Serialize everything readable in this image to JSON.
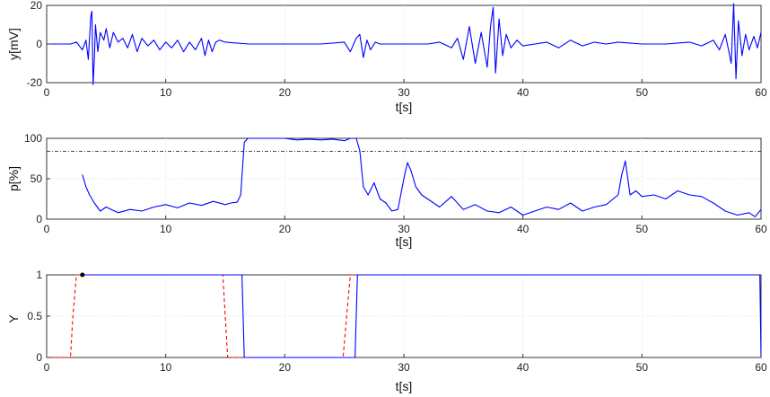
{
  "chart_data": [
    {
      "type": "line",
      "xlabel": "t[s]",
      "ylabel": "y[mV]",
      "xlim": [
        0,
        60
      ],
      "ylim": [
        -20,
        20
      ],
      "xticks": [
        0,
        10,
        20,
        30,
        40,
        50,
        60
      ],
      "yticks": [
        -20,
        0,
        20
      ],
      "grid": true,
      "series": [
        {
          "color": "#0000ff",
          "x": [
            0,
            1,
            2,
            2.5,
            3,
            3.3,
            3.5,
            3.7,
            3.8,
            3.9,
            4.0,
            4.1,
            4.3,
            4.5,
            4.8,
            5.0,
            5.3,
            5.6,
            6.0,
            6.4,
            6.8,
            7.2,
            7.6,
            8.0,
            8.5,
            9.0,
            9.5,
            10.0,
            10.5,
            11.0,
            11.5,
            12.0,
            12.5,
            13.0,
            13.3,
            13.6,
            13.9,
            14.2,
            14.5,
            15,
            17,
            19,
            21,
            23,
            25,
            25.5,
            26.0,
            26.3,
            26.6,
            26.9,
            27.2,
            27.6,
            28,
            30,
            32,
            33,
            34,
            34.5,
            35,
            35.5,
            36,
            36.5,
            37.0,
            37.3,
            37.5,
            37.7,
            38.0,
            38.3,
            38.6,
            39,
            39.5,
            40,
            41,
            42,
            43,
            44,
            45,
            46,
            47,
            48,
            50,
            52,
            54,
            55,
            56,
            56.5,
            57,
            57.3,
            57.5,
            57.7,
            57.9,
            58.1,
            58.4,
            58.7,
            59,
            59.4,
            59.7,
            60
          ],
          "y": [
            0,
            0,
            0,
            1,
            -3,
            2,
            -8,
            14,
            17,
            -21,
            -8,
            10,
            -4,
            6,
            2,
            8,
            -2,
            6,
            1,
            3,
            -2,
            5,
            -4,
            3,
            -1,
            2,
            -3,
            1,
            -2,
            2,
            -4,
            1,
            -3,
            3,
            -6,
            2,
            -4,
            1,
            2,
            1,
            0,
            0,
            0,
            0,
            1,
            -4,
            3,
            5,
            -7,
            2,
            -3,
            1,
            0,
            0,
            0,
            1,
            -2,
            3,
            -8,
            9,
            -10,
            6,
            -12,
            10,
            19,
            -15,
            13,
            -6,
            5,
            -2,
            2,
            -1,
            0,
            1,
            -2,
            2,
            -1,
            1,
            0,
            1,
            0,
            0,
            1,
            -1,
            2,
            -3,
            5,
            -4,
            -10,
            21,
            -18,
            12,
            -6,
            5,
            -3,
            4,
            -2,
            6
          ]
        }
      ]
    },
    {
      "type": "line",
      "xlabel": "t[s]",
      "ylabel": "p[%]",
      "xlim": [
        0,
        60
      ],
      "ylim": [
        0,
        100
      ],
      "xticks": [
        0,
        10,
        20,
        30,
        40,
        50,
        60
      ],
      "yticks": [
        0,
        50,
        100
      ],
      "grid": true,
      "threshold": 84,
      "series": [
        {
          "color": "#0000ff",
          "x": [
            3,
            3.3,
            3.6,
            4,
            4.5,
            5,
            6,
            7,
            8,
            9,
            10,
            11,
            12,
            13,
            14,
            15,
            15.5,
            16,
            16.3,
            16.6,
            16.9,
            17.5,
            18,
            19,
            20,
            21,
            22,
            23,
            24,
            25,
            25.5,
            26,
            26.3,
            26.6,
            27,
            27.5,
            28,
            28.5,
            29,
            29.5,
            30,
            30.3,
            30.6,
            31,
            31.5,
            32,
            33,
            34,
            35,
            36,
            37,
            38,
            39,
            40,
            41,
            42,
            43,
            44,
            45,
            46,
            47,
            48,
            48.3,
            48.6,
            49,
            49.5,
            50,
            51,
            52,
            53,
            54,
            55,
            56,
            57,
            58,
            59,
            59.5,
            60
          ],
          "y": [
            55,
            40,
            30,
            20,
            10,
            15,
            8,
            12,
            10,
            15,
            18,
            14,
            20,
            17,
            22,
            18,
            20,
            21,
            30,
            95,
            100,
            100,
            100,
            100,
            100,
            98,
            99,
            98,
            99,
            97,
            100,
            100,
            85,
            40,
            30,
            45,
            25,
            20,
            10,
            12,
            50,
            70,
            60,
            40,
            30,
            25,
            15,
            28,
            12,
            18,
            10,
            8,
            15,
            5,
            10,
            15,
            12,
            20,
            10,
            15,
            18,
            30,
            55,
            72,
            30,
            35,
            28,
            30,
            25,
            35,
            30,
            28,
            20,
            10,
            5,
            8,
            3,
            12
          ]
        }
      ]
    },
    {
      "type": "line",
      "xlabel": "t[s]",
      "ylabel": "Y",
      "xlim": [
        0,
        60
      ],
      "ylim": [
        0,
        1
      ],
      "xticks": [
        0,
        10,
        20,
        30,
        40,
        50,
        60
      ],
      "yticks": [
        0,
        0.5,
        1
      ],
      "ytick_labels": [
        "0",
        "0.5",
        "1"
      ],
      "grid": true,
      "marker": {
        "x": 3,
        "y": 1,
        "color": "#000000"
      },
      "series": [
        {
          "color": "#ff0000",
          "dash": true,
          "x": [
            0,
            2,
            2.2,
            2.5,
            14.8,
            15.0,
            15.2,
            16.5,
            24.9,
            25.2,
            25.5,
            26
          ],
          "y": [
            0,
            0,
            0.5,
            1,
            1,
            0.5,
            0,
            0,
            0,
            0.5,
            1,
            1
          ]
        },
        {
          "color": "#0000ff",
          "dash": false,
          "x": [
            3,
            16.4,
            16.6,
            25.9,
            26.1,
            59.9,
            60
          ],
          "y": [
            1,
            1,
            0,
            0,
            1,
            1,
            0
          ]
        }
      ]
    }
  ]
}
